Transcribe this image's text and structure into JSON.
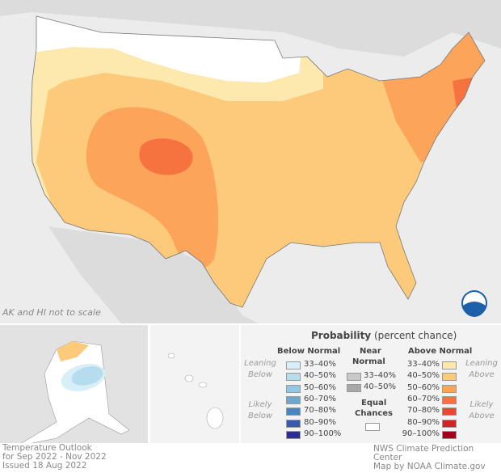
{
  "map": {
    "scale_note": "AK and HI not to scale",
    "logo_text": "NOAA"
  },
  "legend": {
    "title": "Probability",
    "title_suffix": "(percent chance)",
    "below_header": "Below Normal",
    "near_header_1": "Near",
    "near_header_2": "Normal",
    "above_header": "Above Normal",
    "leaning_below_1": "Leaning",
    "leaning_below_2": "Below",
    "likely_below_1": "Likely",
    "likely_below_2": "Below",
    "leaning_above_1": "Leaning",
    "leaning_above_2": "Above",
    "likely_above_1": "Likely",
    "likely_above_2": "Above",
    "equal_1": "Equal",
    "equal_2": "Chances",
    "below": [
      {
        "label": "33–40%",
        "color": "#d9eff7"
      },
      {
        "label": "40–50%",
        "color": "#b5dded"
      },
      {
        "label": "50–60%",
        "color": "#90c8e1"
      },
      {
        "label": "60–70%",
        "color": "#6aa8d2"
      },
      {
        "label": "70–80%",
        "color": "#4a85c3"
      },
      {
        "label": "80–90%",
        "color": "#3a5ba9"
      },
      {
        "label": "90–100%",
        "color": "#2b2f8e"
      }
    ],
    "near": [
      {
        "label": "33–40%",
        "color": "#c9c9c9"
      },
      {
        "label": "40–50%",
        "color": "#a8a8a8"
      }
    ],
    "above": [
      {
        "label": "33–40%",
        "color": "#fde8ad"
      },
      {
        "label": "40–50%",
        "color": "#fdc97b"
      },
      {
        "label": "50–60%",
        "color": "#fca45a"
      },
      {
        "label": "60–70%",
        "color": "#f6723e"
      },
      {
        "label": "70–80%",
        "color": "#e44a31"
      },
      {
        "label": "80–90%",
        "color": "#cf2425"
      },
      {
        "label": "90–100%",
        "color": "#a3001d"
      }
    ]
  },
  "footer": {
    "line1": "Temperature Outlook",
    "line2": "for Sep 2022 - Nov 2022",
    "line3": "Issued 18 Aug 2022",
    "credit1": "NWS Climate Prediction Center",
    "credit2": "Map by NOAA Climate.gov"
  }
}
